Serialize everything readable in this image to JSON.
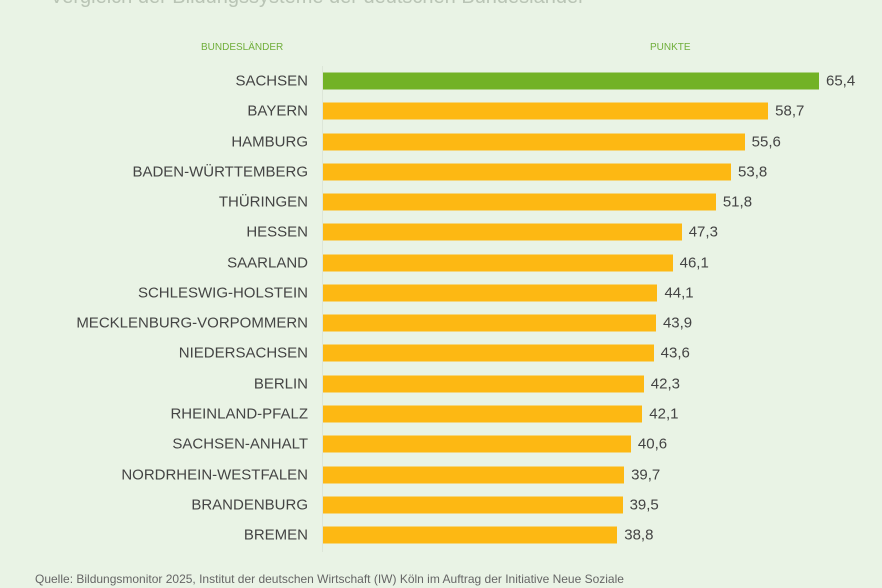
{
  "title": "Vergleich der Bildungssysteme der deutschen Bundesländer",
  "colors": {
    "highlight": "#72b226",
    "bar": "#fdb813",
    "header": "#6fae3a"
  },
  "chart_data": {
    "type": "bar",
    "orientation": "horizontal",
    "category_header": "BUNDESLÄNDER",
    "value_header": "PUNKTE",
    "categories": [
      "SACHSEN",
      "BAYERN",
      "HAMBURG",
      "BADEN-WÜRTTEMBERG",
      "THÜRINGEN",
      "HESSEN",
      "SAARLAND",
      "SCHLESWIG-HOLSTEIN",
      "MECKLENBURG-VORPOMMERN",
      "NIEDERSACHSEN",
      "BERLIN",
      "RHEINLAND-PFALZ",
      "SACHSEN-ANHALT",
      "NORDRHEIN-WESTFALEN",
      "BRANDENBURG",
      "BREMEN"
    ],
    "values": [
      65.4,
      58.7,
      55.6,
      53.8,
      51.8,
      47.3,
      46.1,
      44.1,
      43.9,
      43.6,
      42.3,
      42.1,
      40.6,
      39.7,
      39.5,
      38.8
    ],
    "value_labels": [
      "65,4",
      "58,7",
      "55,6",
      "53,8",
      "51,8",
      "47,3",
      "46,1",
      "44,1",
      "43,9",
      "43,6",
      "42,3",
      "42,1",
      "40,6",
      "39,7",
      "39,5",
      "38,8"
    ],
    "highlighted": "SACHSEN",
    "grid": false
  },
  "source": "Quelle: Bildungsmonitor 2025, Institut der deutschen Wirtschaft (IW) Köln im Auftrag der Initiative  Neue Soziale"
}
